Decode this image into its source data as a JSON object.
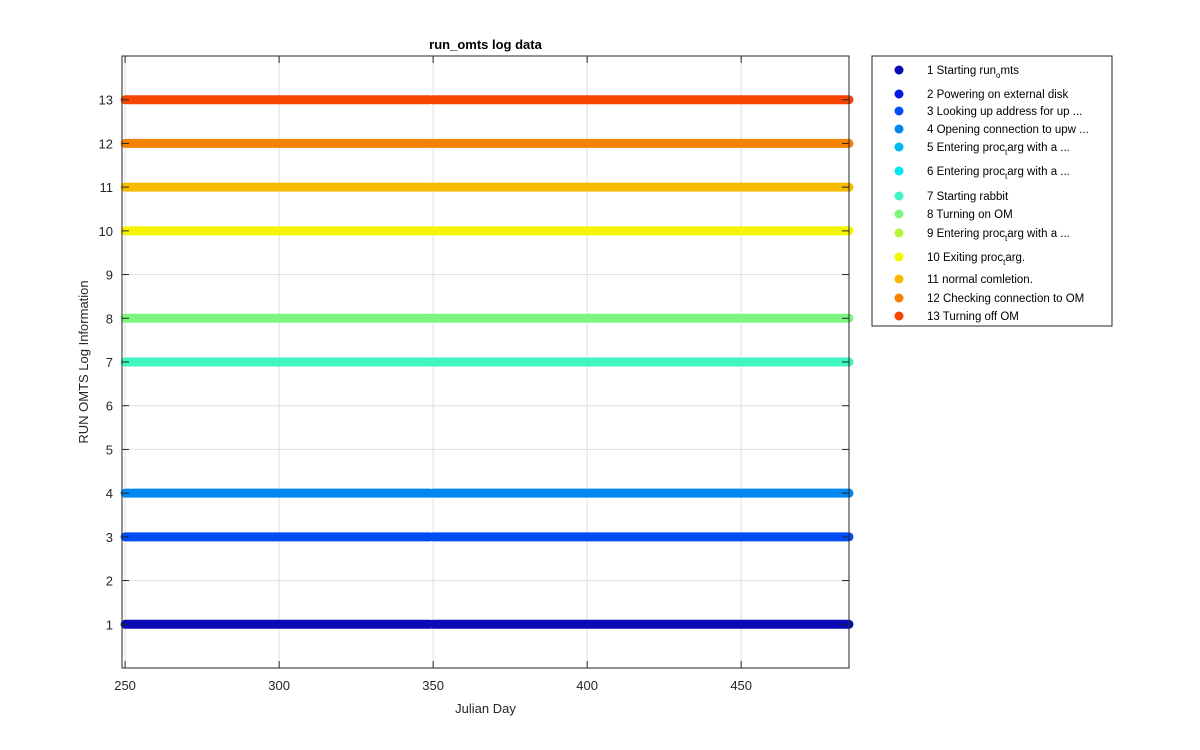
{
  "chart_data": {
    "type": "scatter",
    "title": "run_omts log data",
    "xlabel": "Julian Day",
    "ylabel": "RUN OMTS Log Information",
    "xlim": [
      249,
      485
    ],
    "ylim": [
      0,
      14
    ],
    "xticks": [
      250,
      300,
      350,
      400,
      450
    ],
    "yticks": [
      1,
      2,
      3,
      4,
      5,
      6,
      7,
      8,
      9,
      10,
      11,
      12,
      13
    ],
    "grid": true,
    "legend_position": "outside-top-right",
    "segments": [
      {
        "x_start": 250,
        "x_end": 349
      },
      {
        "x_start": 350,
        "x_end": 485
      }
    ],
    "series": [
      {
        "name": "1 Starting run_omts",
        "y": 1,
        "color": "#0a0ab6",
        "present": true
      },
      {
        "name": "2 Powering on external disk",
        "y": 2,
        "color": "#0017e6",
        "present": false
      },
      {
        "name": "3 Looking up address for up ...",
        "y": 3,
        "color": "#004cf5",
        "present": true
      },
      {
        "name": "4 Opening connection to upw ...",
        "y": 4,
        "color": "#0088f2",
        "present": true
      },
      {
        "name": "5 Entering proc_targ with a ...",
        "y": 5,
        "color": "#00b8f0",
        "present": false
      },
      {
        "name": "6 Entering proc_targ with a ...",
        "y": 6,
        "color": "#00e8f0",
        "present": false
      },
      {
        "name": "7 Starting rabbit",
        "y": 7,
        "color": "#3ff5c0",
        "present": true
      },
      {
        "name": "8 Turning on OM",
        "y": 8,
        "color": "#7df57f",
        "present": true
      },
      {
        "name": "9 Entering proc_targ with a ...",
        "y": 9,
        "color": "#b9f53f",
        "present": false
      },
      {
        "name": "10 Exiting proc_targ.",
        "y": 10,
        "color": "#f5f500",
        "present": true
      },
      {
        "name": "11 normal comletion.",
        "y": 11,
        "color": "#f5bb00",
        "present": true
      },
      {
        "name": "12 Checking connection to OM",
        "y": 12,
        "color": "#f58200",
        "present": true
      },
      {
        "name": "13 Turning off OM",
        "y": 13,
        "color": "#f54500",
        "present": true
      }
    ]
  },
  "legend": {
    "items": [
      {
        "pre": "1 Starting run",
        "sub": "o",
        "post": "mts"
      },
      {
        "pre": "2 Powering on external disk",
        "sub": "",
        "post": ""
      },
      {
        "pre": "3 Looking up address for up ...",
        "sub": "",
        "post": ""
      },
      {
        "pre": "4 Opening connection to upw ...",
        "sub": "",
        "post": ""
      },
      {
        "pre": "5 Entering proc",
        "sub": "t",
        "post": "arg with a ..."
      },
      {
        "pre": "6 Entering proc",
        "sub": "t",
        "post": "arg with a ..."
      },
      {
        "pre": "7 Starting rabbit",
        "sub": "",
        "post": ""
      },
      {
        "pre": "8 Turning on OM",
        "sub": "",
        "post": ""
      },
      {
        "pre": "9 Entering proc",
        "sub": "t",
        "post": "arg with a ..."
      },
      {
        "pre": "10 Exiting proc",
        "sub": "t",
        "post": "arg."
      },
      {
        "pre": "11 normal comletion.",
        "sub": "",
        "post": ""
      },
      {
        "pre": "12 Checking connection to OM",
        "sub": "",
        "post": ""
      },
      {
        "pre": "13 Turning off OM",
        "sub": "",
        "post": ""
      }
    ]
  }
}
